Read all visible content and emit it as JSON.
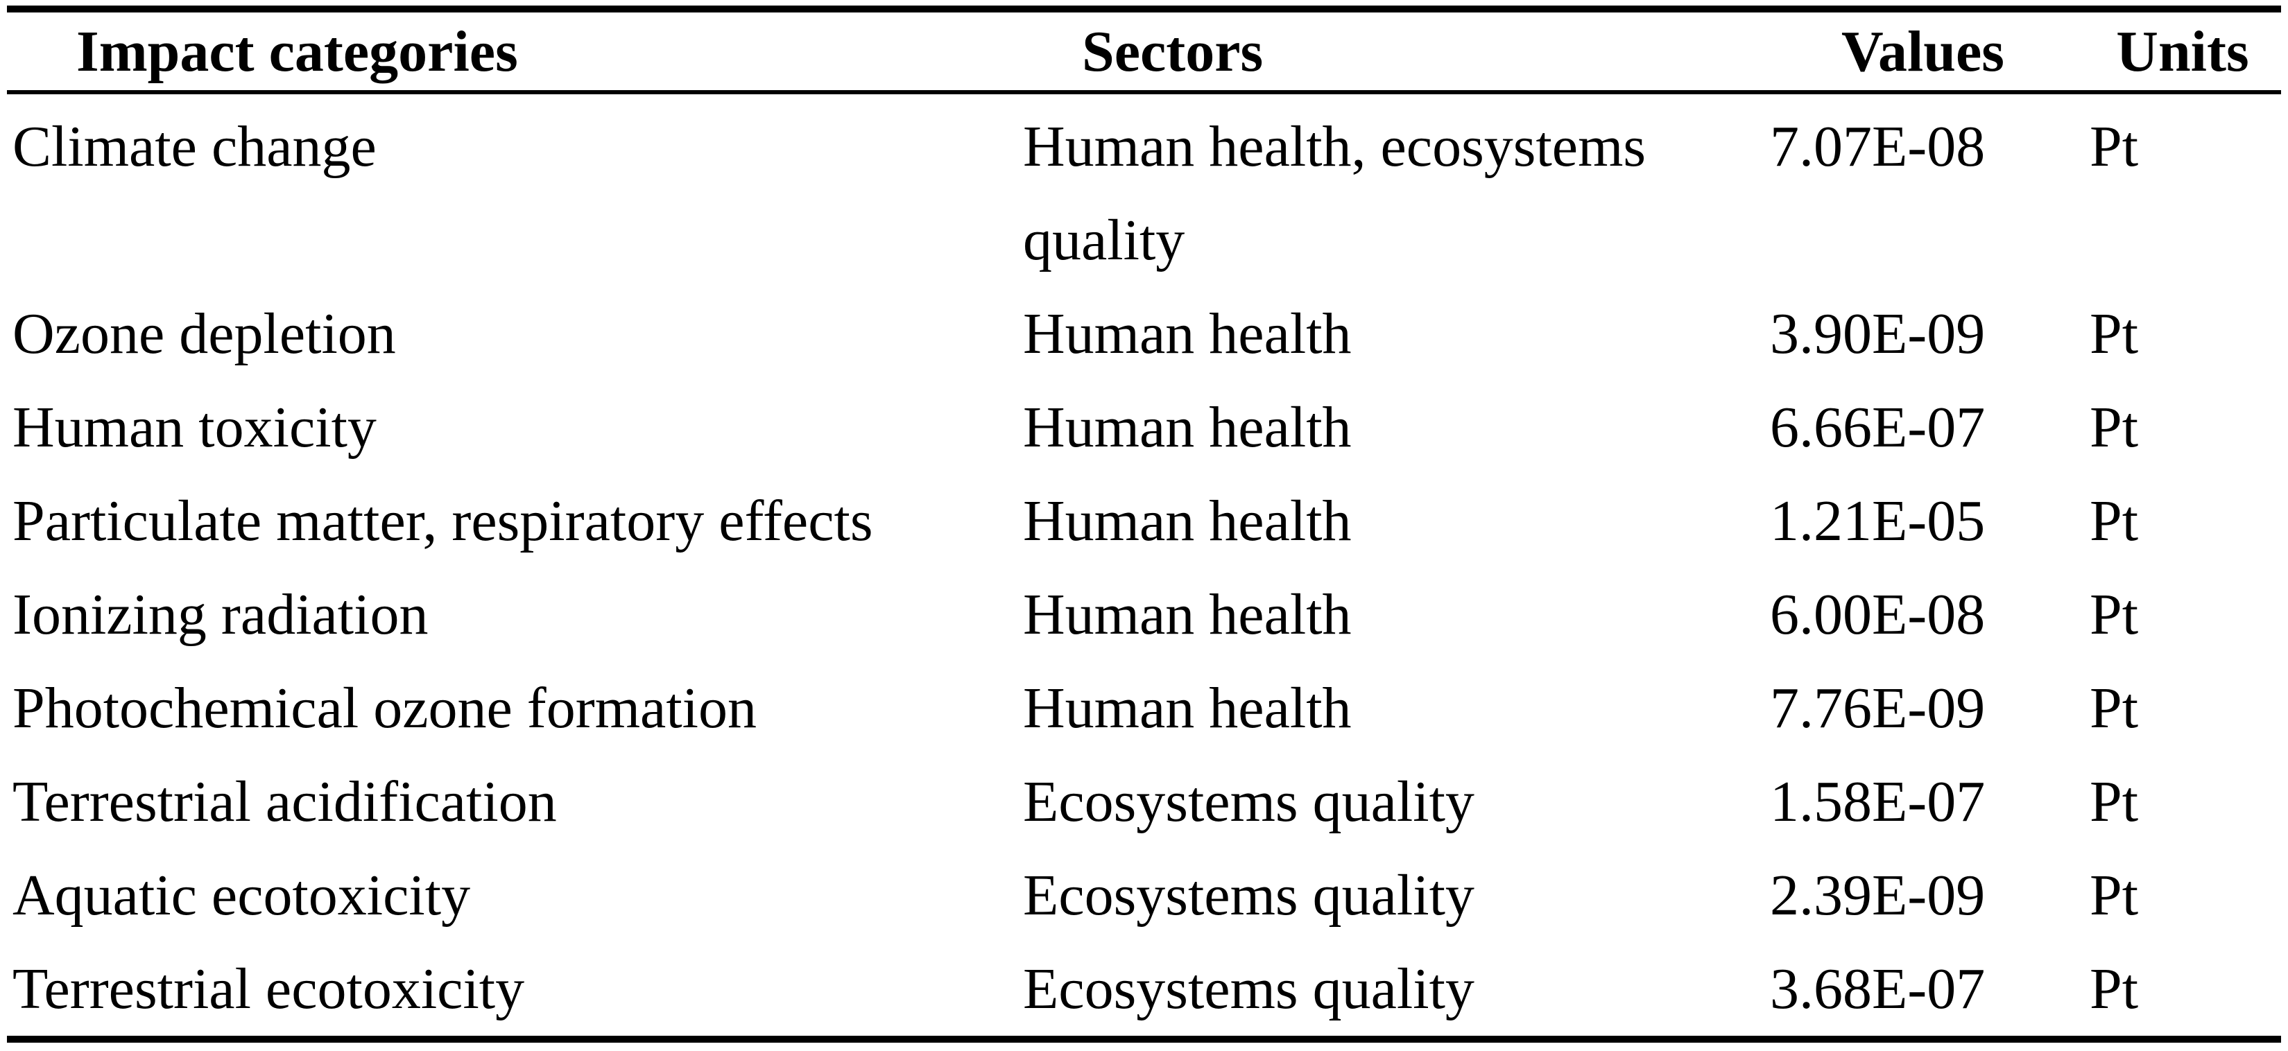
{
  "colors": {
    "background": "#ffffff",
    "text": "#000000",
    "rule": "#000000"
  },
  "table": {
    "columns": [
      {
        "key": "impact_category",
        "label": "Impact categories"
      },
      {
        "key": "sector",
        "label": "Sectors"
      },
      {
        "key": "value",
        "label": "Values"
      },
      {
        "key": "unit",
        "label": "Units"
      }
    ],
    "rows": [
      {
        "impact_category": "Climate change",
        "sector": "Human health, ecosystems quality",
        "value": "7.07E-08",
        "unit": "Pt"
      },
      {
        "impact_category": "Ozone depletion",
        "sector": "Human health",
        "value": "3.90E-09",
        "unit": "Pt"
      },
      {
        "impact_category": "Human toxicity",
        "sector": "Human health",
        "value": "6.66E-07",
        "unit": "Pt"
      },
      {
        "impact_category": "Particulate matter, respiratory effects",
        "sector": "Human health",
        "value": "1.21E-05",
        "unit": "Pt"
      },
      {
        "impact_category": "Ionizing radiation",
        "sector": "Human health",
        "value": "6.00E-08",
        "unit": "Pt"
      },
      {
        "impact_category": "Photochemical ozone formation",
        "sector": "Human health",
        "value": "7.76E-09",
        "unit": "Pt"
      },
      {
        "impact_category": "Terrestrial acidification",
        "sector": "Ecosystems quality",
        "value": "1.58E-07",
        "unit": "Pt"
      },
      {
        "impact_category": "Aquatic ecotoxicity",
        "sector": "Ecosystems quality",
        "value": "2.39E-09",
        "unit": "Pt"
      },
      {
        "impact_category": "Terrestrial ecotoxicity",
        "sector": "Ecosystems quality",
        "value": "3.68E-07",
        "unit": "Pt"
      }
    ]
  }
}
